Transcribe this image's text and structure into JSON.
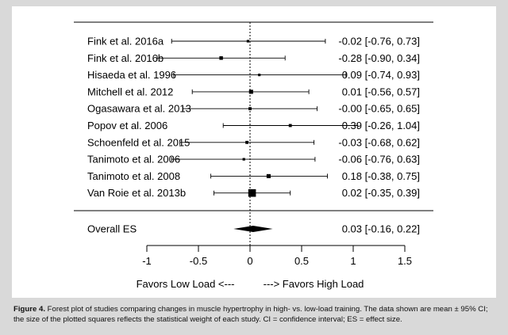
{
  "chart_data": {
    "type": "forest",
    "studies": [
      {
        "label": "Fink et al. 2016a",
        "es": -0.02,
        "lo": -0.76,
        "hi": 0.73,
        "ci_text": "-0.02 [-0.76, 0.73]",
        "weight": 1
      },
      {
        "label": "Fink et al. 2016b",
        "es": -0.28,
        "lo": -0.9,
        "hi": 0.34,
        "ci_text": "-0.28 [-0.90, 0.34]",
        "weight": 1.4
      },
      {
        "label": "Hisaeda et al. 1996",
        "es": 0.09,
        "lo": -0.74,
        "hi": 0.93,
        "ci_text": "0.09 [-0.74, 0.93]",
        "weight": 1
      },
      {
        "label": "Mitchell et al. 2012",
        "es": 0.01,
        "lo": -0.56,
        "hi": 0.57,
        "ci_text": "0.01 [-0.56, 0.57]",
        "weight": 1.6
      },
      {
        "label": "Ogasawara et al. 2013",
        "es": -0.0,
        "lo": -0.65,
        "hi": 0.65,
        "ci_text": "-0.00 [-0.65, 0.65]",
        "weight": 1.2
      },
      {
        "label": "Popov et al. 2006",
        "es": 0.39,
        "lo": -0.26,
        "hi": 1.04,
        "ci_text": "0.39 [-0.26, 1.04]",
        "weight": 1.2
      },
      {
        "label": "Schoenfeld et al. 2015",
        "es": -0.03,
        "lo": -0.68,
        "hi": 0.62,
        "ci_text": "-0.03 [-0.68, 0.62]",
        "weight": 1.2
      },
      {
        "label": "Tanimoto et al. 2006",
        "es": -0.06,
        "lo": -0.76,
        "hi": 0.63,
        "ci_text": "-0.06 [-0.76, 0.63]",
        "weight": 1
      },
      {
        "label": "Tanimoto et al. 2008",
        "es": 0.18,
        "lo": -0.38,
        "hi": 0.75,
        "ci_text": "0.18 [-0.38, 0.75]",
        "weight": 1.6
      },
      {
        "label": "Van Roie et al. 2013b",
        "es": 0.02,
        "lo": -0.35,
        "hi": 0.39,
        "ci_text": "0.02 [-0.35, 0.39]",
        "weight": 3
      }
    ],
    "overall": {
      "label": "Overall ES",
      "es": 0.03,
      "lo": -0.16,
      "hi": 0.22,
      "ci_text": "0.03 [-0.16, 0.22]"
    },
    "x_ticks": [
      -1,
      -0.5,
      0,
      0.5,
      1,
      1.5
    ],
    "x_tick_labels": [
      "-1",
      "-0.5",
      "0",
      "0.5",
      "1",
      "1.5"
    ],
    "xlim": [
      -1,
      1.5
    ],
    "xlabel": "Favors Low Load <---          ---> Favors High Load",
    "reference_line": 0
  },
  "caption": {
    "label": "Figure 4.",
    "text": "Forest plot of studies comparing changes in muscle hypertrophy in high- vs. low-load training. The data shown are mean ± 95% CI; the size of the plotted squares reflects the statistical weight of each study. CI = confidence interval; ES = effect size."
  },
  "colors": {
    "background": "#d9d9d9",
    "panel": "#ffffff",
    "ink": "#000000"
  }
}
